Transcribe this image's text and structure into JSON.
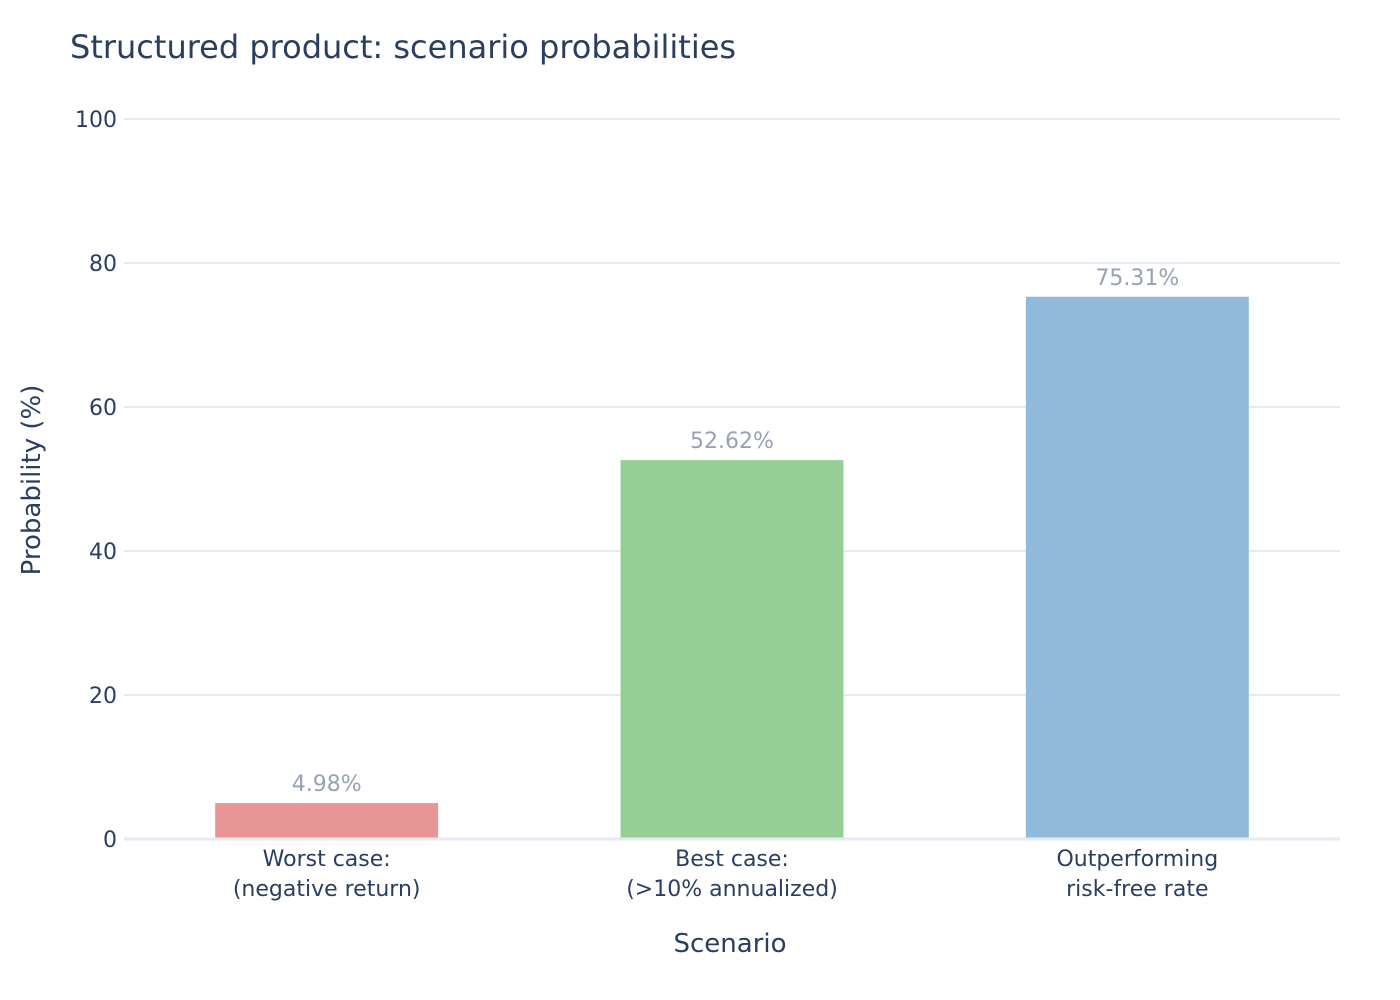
{
  "chart_data": {
    "type": "bar",
    "title": "Structured product: scenario probabilities",
    "xlabel": "Scenario",
    "ylabel": "Probability (%)",
    "ylim": [
      0,
      100
    ],
    "yticks": [
      0,
      20,
      40,
      60,
      80,
      100
    ],
    "ytick_labels": [
      "0",
      "20",
      "40",
      "60",
      "80",
      "100"
    ],
    "grid": true,
    "categories": [
      [
        "Worst case:",
        "(negative return)"
      ],
      [
        "Best case:",
        "(>10% annualized)"
      ],
      [
        "Outperforming",
        "risk-free rate"
      ]
    ],
    "values": [
      4.98,
      52.62,
      75.31
    ],
    "data_labels": [
      "4.98%",
      "52.62%",
      "75.31%"
    ],
    "colors": [
      "#e89595",
      "#95cf95",
      "#91b9d9"
    ],
    "gridline_color": "#e6eaf2"
  }
}
